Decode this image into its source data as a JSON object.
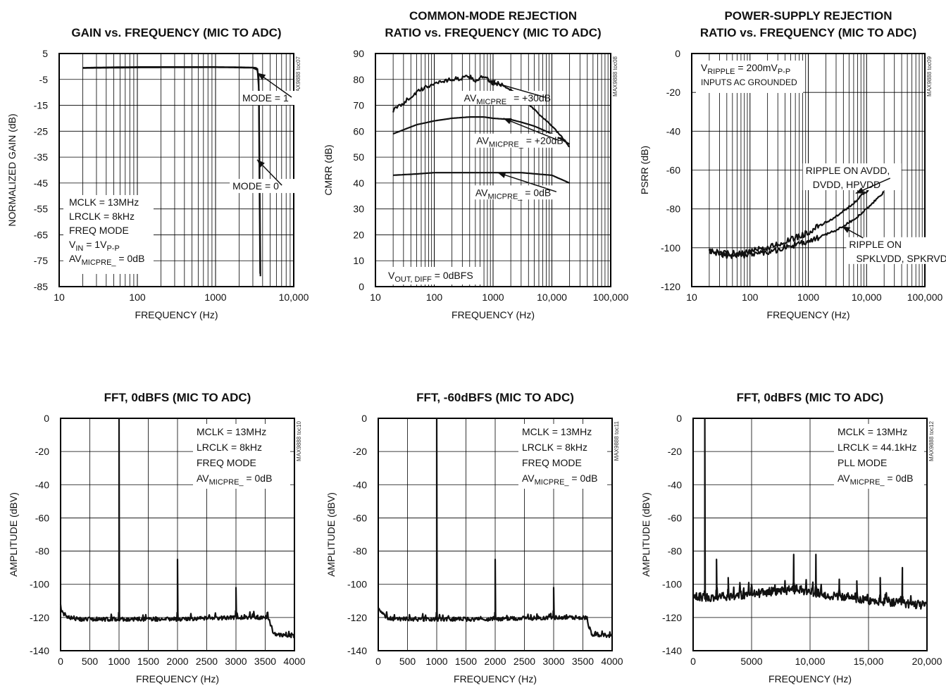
{
  "chart_data": [
    {
      "id": "gain",
      "type": "line",
      "title": [
        "GAIN vs. FREQUENCY (MIC TO ADC)"
      ],
      "xlabel": "FREQUENCY (Hz)",
      "ylabel": "NORMALIZED GAIN (dB)",
      "xscale": "log",
      "xlim": [
        10,
        10000
      ],
      "ylim": [
        -85,
        5
      ],
      "xticks": [
        10,
        100,
        1000,
        10000
      ],
      "xtick_labels": [
        "10",
        "100",
        "1000",
        "10,000"
      ],
      "yticks": [
        5,
        -5,
        -15,
        -25,
        -35,
        -45,
        -55,
        -65,
        -75,
        -85
      ],
      "ytick_labels": [
        "5",
        "-5",
        "-15",
        "-25",
        "-35",
        "-45",
        "-55",
        "-65",
        "-75",
        "-85"
      ],
      "grid": true,
      "part_code": "MAX9888 toc07",
      "series": [
        {
          "x": [
            20,
            50,
            100,
            300,
            1000,
            2000,
            3000,
            3400,
            3550,
            3650,
            3700,
            3750
          ],
          "y": [
            -0.5,
            -0.3,
            -0.2,
            -0.2,
            -0.2,
            -0.3,
            -0.4,
            -0.6,
            -2,
            -20,
            -50,
            -81
          ]
        },
        {
          "x": [
            20,
            100,
            1000,
            3000,
            3500,
            3600,
            3650,
            3700,
            3720
          ],
          "y": [
            -0.6,
            -0.4,
            -0.3,
            -0.5,
            -1.5,
            -5,
            -25,
            -60,
            -80
          ]
        }
      ],
      "annotations": [
        {
          "text": "MODE = 1",
          "xy": [
            2200,
            -13.5
          ],
          "arrow_to": [
            3450,
            -2.5
          ]
        },
        {
          "text": "MODE = 0",
          "xy": [
            1650,
            -47.5
          ],
          "arrow_to": [
            3400,
            -36
          ]
        }
      ],
      "notes": [
        [
          {
            "t": "MCLK = 13MHz"
          }
        ],
        [
          {
            "t": "LRCLK = 8kHz"
          }
        ],
        [
          {
            "t": "FREQ MODE"
          }
        ],
        [
          {
            "t": "V"
          },
          {
            "t": "IN",
            "sub": true
          },
          {
            "t": " = 1V"
          },
          {
            "t": "P-P",
            "sub": true
          }
        ],
        [
          {
            "t": "AV"
          },
          {
            "t": "MICPRE_",
            "sub": true
          },
          {
            "t": " = 0dB"
          }
        ]
      ]
    },
    {
      "id": "cmrr",
      "type": "line",
      "title": [
        "COMMON-MODE REJECTION",
        "RATIO vs. FREQUENCY (MIC TO ADC)"
      ],
      "xlabel": "FREQUENCY (Hz)",
      "ylabel": "CMRR (dB)",
      "xscale": "log",
      "xlim": [
        10,
        100000
      ],
      "ylim": [
        0,
        90
      ],
      "xticks": [
        10,
        100,
        1000,
        10000,
        100000
      ],
      "xtick_labels": [
        "10",
        "100",
        "1000",
        "10,000",
        "100,000"
      ],
      "yticks": [
        0,
        10,
        20,
        30,
        40,
        50,
        60,
        70,
        80,
        90
      ],
      "ytick_labels": [
        "0",
        "10",
        "20",
        "30",
        "40",
        "50",
        "60",
        "70",
        "80",
        "90"
      ],
      "grid": true,
      "part_code": "MAX9888 toc08",
      "series": [
        {
          "name_parts": [
            {
              "t": "AV"
            },
            {
              "t": "MICPRE_",
              "sub": true
            },
            {
              "t": " = +30dB"
            }
          ],
          "x": [
            20,
            30,
            50,
            80,
            100,
            150,
            200,
            300,
            400,
            500,
            600,
            700,
            800,
            900,
            1000,
            1200,
            1500,
            2000,
            3000,
            5000,
            8000,
            10000,
            15000,
            20000
          ],
          "y": [
            68,
            71,
            75,
            77.5,
            78.5,
            79.5,
            80,
            80.5,
            81,
            79.5,
            80.5,
            81,
            80,
            79,
            78.5,
            78.5,
            77.5,
            76,
            73,
            68.5,
            64,
            62,
            57.5,
            54
          ],
          "noise": 0.8
        },
        {
          "name_parts": [
            {
              "t": "AV"
            },
            {
              "t": "MICPRE_",
              "sub": true
            },
            {
              "t": " = +20dB"
            }
          ],
          "x": [
            20,
            50,
            100,
            200,
            400,
            700,
            1000,
            2000,
            3000,
            5000,
            10000,
            20000
          ],
          "y": [
            59,
            62.5,
            64,
            65,
            65.5,
            65.5,
            65,
            64.5,
            63.5,
            62,
            59,
            55
          ]
        },
        {
          "name_parts": [
            {
              "t": "AV"
            },
            {
              "t": "MICPRE_",
              "sub": true
            },
            {
              "t": " = 0dB"
            }
          ],
          "x": [
            20,
            50,
            100,
            300,
            1000,
            3000,
            10000,
            20000
          ],
          "y": [
            43,
            43.5,
            44,
            44,
            44,
            44,
            43,
            40
          ]
        }
      ],
      "annotations": [
        {
          "parts": [
            {
              "t": "AV"
            },
            {
              "t": "MICPRE_",
              "sub": true
            },
            {
              "t": " = +30dB"
            }
          ],
          "xy": [
            320,
            71.5
          ],
          "arrow_to": [
            800,
            79.5
          ]
        },
        {
          "parts": [
            {
              "t": "AV"
            },
            {
              "t": "MICPRE_",
              "sub": true
            },
            {
              "t": " = +20dB"
            }
          ],
          "xy": [
            520,
            55
          ],
          "arrow_to": [
            1500,
            65
          ]
        },
        {
          "parts": [
            {
              "t": "AV"
            },
            {
              "t": "MICPRE_",
              "sub": true
            },
            {
              "t": " = 0dB"
            }
          ],
          "xy": [
            500,
            35
          ],
          "arrow_to": [
            1200,
            44
          ]
        }
      ],
      "notes": [
        [
          {
            "t": "V"
          },
          {
            "t": "OUT, DIFF",
            "sub": true
          },
          {
            "t": " = 0dBFS"
          }
        ]
      ]
    },
    {
      "id": "psrr",
      "type": "line",
      "title": [
        "POWER-SUPPLY REJECTION",
        "RATIO vs. FREQUENCY (MIC TO ADC)"
      ],
      "xlabel": "FREQUENCY (Hz)",
      "ylabel": "PSRR (dB)",
      "xscale": "log",
      "xlim": [
        10,
        100000
      ],
      "ylim": [
        -120,
        0
      ],
      "xticks": [
        10,
        100,
        1000,
        10000,
        100000
      ],
      "xtick_labels": [
        "10",
        "100",
        "1000",
        "10,000",
        "100,000"
      ],
      "yticks": [
        0,
        -20,
        -40,
        -60,
        -80,
        -100,
        -120
      ],
      "ytick_labels": [
        "0",
        "-20",
        "-40",
        "-60",
        "-80",
        "-100",
        "-120"
      ],
      "grid": true,
      "part_code": "MAX9888 toc09",
      "series": [
        {
          "name_parts": [
            {
              "t": "RIPPLE ON AVDD, DVDD, HPVDD"
            }
          ],
          "x": [
            20,
            40,
            70,
            100,
            200,
            300,
            500,
            700,
            1000,
            1500,
            2000,
            3000,
            5000,
            7000,
            10000,
            15000,
            20000
          ],
          "y": [
            -102,
            -103,
            -103,
            -102,
            -100,
            -98,
            -96,
            -94,
            -92,
            -89,
            -87,
            -84,
            -79,
            -75,
            -71,
            -65,
            -60
          ],
          "noise": 1.6
        },
        {
          "name_parts": [
            {
              "t": "RIPPLE ON SPKLVDD, SPKRVDD"
            }
          ],
          "x": [
            20,
            40,
            70,
            100,
            200,
            300,
            500,
            700,
            1000,
            1500,
            2000,
            3000,
            5000,
            7000,
            10000,
            15000,
            20000
          ],
          "y": [
            -102,
            -104,
            -104,
            -103,
            -102,
            -101,
            -99,
            -98,
            -97,
            -95,
            -93,
            -91,
            -87,
            -84,
            -80,
            -75,
            -71
          ],
          "noise": 1.6
        }
      ],
      "annotations": [
        {
          "text": "RIPPLE ON AVDD,",
          "text2": "DVDD, HPVDD",
          "xy": [
            900,
            -62
          ],
          "arrow_to": [
            6500,
            -72
          ]
        },
        {
          "text": "RIPPLE ON",
          "text2": "SPKLVDD, SPKRVDD",
          "xy": [
            5000,
            -100
          ],
          "arrow_to": [
            3800,
            -89
          ]
        }
      ],
      "notes": [
        [
          {
            "t": "V"
          },
          {
            "t": "RIPPLE",
            "sub": true
          },
          {
            "t": " = 200mV"
          },
          {
            "t": "P-P",
            "sub": true
          }
        ],
        [
          {
            "t": "INPUTS AC GROUNDED",
            "small": true
          }
        ]
      ]
    },
    {
      "id": "fft1",
      "type": "line",
      "title": [
        "FFT, 0dBFS (MIC TO ADC)"
      ],
      "xlabel": "FREQUENCY (Hz)",
      "ylabel": "AMPLITUDE (dBV)",
      "xscale": "linear",
      "xlim": [
        0,
        4000
      ],
      "ylim": [
        -140,
        0
      ],
      "xticks": [
        0,
        500,
        1000,
        1500,
        2000,
        2500,
        3000,
        3500,
        4000
      ],
      "xtick_labels": [
        "0",
        "500",
        "1000",
        "1500",
        "2000",
        "2500",
        "3000",
        "3500",
        "4000"
      ],
      "yticks": [
        0,
        -20,
        -40,
        -60,
        -80,
        -100,
        -120,
        -140
      ],
      "ytick_labels": [
        "0",
        "-20",
        "-40",
        "-60",
        "-80",
        "-100",
        "-120",
        "-140"
      ],
      "grid": true,
      "part_code": "MAX9888 toc10",
      "series": [
        {
          "x": [
            0,
            60,
            150,
            300,
            500,
            1000,
            2000,
            3000,
            3550,
            3600,
            3650,
            4000
          ],
          "y": [
            -115,
            -118,
            -120,
            -121,
            -121,
            -121,
            -121,
            -120,
            -120,
            -125,
            -130,
            -131
          ],
          "noise": 1.2,
          "peaks": [
            [
              1000,
              0
            ],
            [
              2000,
              -85
            ],
            [
              3000,
              -102
            ]
          ]
        }
      ],
      "notes": [
        [
          {
            "t": "MCLK = 13MHz"
          }
        ],
        [
          {
            "t": "LRCLK = 8kHz"
          }
        ],
        [
          {
            "t": "FREQ MODE"
          }
        ],
        [
          {
            "t": "AV"
          },
          {
            "t": "MICPRE_",
            "sub": true
          },
          {
            "t": " = 0dB"
          }
        ]
      ]
    },
    {
      "id": "fft2",
      "type": "line",
      "title": [
        "FFT, -60dBFS (MIC TO ADC)"
      ],
      "xlabel": "FREQUENCY (Hz)",
      "ylabel": "AMPLITUDE (dBV)",
      "xscale": "linear",
      "xlim": [
        0,
        4000
      ],
      "ylim": [
        -140,
        0
      ],
      "xticks": [
        0,
        500,
        1000,
        1500,
        2000,
        2500,
        3000,
        3500,
        4000
      ],
      "xtick_labels": [
        "0",
        "500",
        "1000",
        "1500",
        "2000",
        "2500",
        "3000",
        "3500",
        "4000"
      ],
      "yticks": [
        0,
        -20,
        -40,
        -60,
        -80,
        -100,
        -120,
        -140
      ],
      "ytick_labels": [
        "0",
        "-20",
        "-40",
        "-60",
        "-80",
        "-100",
        "-120",
        "-140"
      ],
      "grid": true,
      "part_code": "MAX9888 toc11",
      "series": [
        {
          "x": [
            0,
            60,
            150,
            300,
            500,
            1000,
            2000,
            3000,
            3550,
            3600,
            3650,
            4000
          ],
          "y": [
            -115,
            -118,
            -120,
            -121,
            -121,
            -121,
            -121,
            -120,
            -120,
            -125,
            -130,
            -131
          ],
          "noise": 1.2,
          "peaks": [
            [
              1000,
              0
            ],
            [
              2000,
              -85
            ],
            [
              3000,
              -102
            ]
          ]
        }
      ],
      "notes": [
        [
          {
            "t": "MCLK = 13MHz"
          }
        ],
        [
          {
            "t": "LRCLK = 8kHz"
          }
        ],
        [
          {
            "t": "FREQ MODE"
          }
        ],
        [
          {
            "t": "AV"
          },
          {
            "t": "MICPRE_",
            "sub": true
          },
          {
            "t": " = 0dB"
          }
        ]
      ]
    },
    {
      "id": "fft3",
      "type": "line",
      "title": [
        "FFT, 0dBFS (MIC TO ADC)"
      ],
      "xlabel": "FREQUENCY (Hz)",
      "ylabel": "AMPLITUDE (dBV)",
      "xscale": "linear",
      "xlim": [
        0,
        20000
      ],
      "ylim": [
        -140,
        0
      ],
      "xticks": [
        0,
        5000,
        10000,
        15000,
        20000
      ],
      "xtick_labels": [
        "0",
        "5000",
        "10,000",
        "15,000",
        "20,000"
      ],
      "yticks": [
        0,
        -20,
        -40,
        -60,
        -80,
        -100,
        -120,
        -140
      ],
      "ytick_labels": [
        "0",
        "-20",
        "-40",
        "-60",
        "-80",
        "-100",
        "-120",
        "-140"
      ],
      "grid": true,
      "part_code": "MAX9888 toc12",
      "series": [
        {
          "x": [
            0,
            1000,
            3000,
            5000,
            7000,
            9000,
            11000,
            13000,
            15000,
            17000,
            19000,
            20000
          ],
          "y": [
            -107,
            -108,
            -107,
            -106,
            -104,
            -103,
            -106,
            -108,
            -110,
            -111,
            -112,
            -113
          ],
          "noise": 2.6,
          "peaks": [
            [
              1000,
              0
            ],
            [
              2000,
              -85
            ],
            [
              3000,
              -96
            ],
            [
              4000,
              -99
            ],
            [
              5000,
              -100
            ],
            [
              8600,
              -82
            ],
            [
              10500,
              -82
            ],
            [
              12500,
              -97
            ],
            [
              14000,
              -98
            ],
            [
              16000,
              -96
            ],
            [
              17900,
              -90
            ]
          ]
        }
      ],
      "notes": [
        [
          {
            "t": "MCLK = 13MHz"
          }
        ],
        [
          {
            "t": "LRCLK = 44.1kHz"
          }
        ],
        [
          {
            "t": "PLL MODE"
          }
        ],
        [
          {
            "t": "AV"
          },
          {
            "t": "MICPRE_",
            "sub": true
          },
          {
            "t": " = 0dB"
          }
        ]
      ]
    }
  ]
}
